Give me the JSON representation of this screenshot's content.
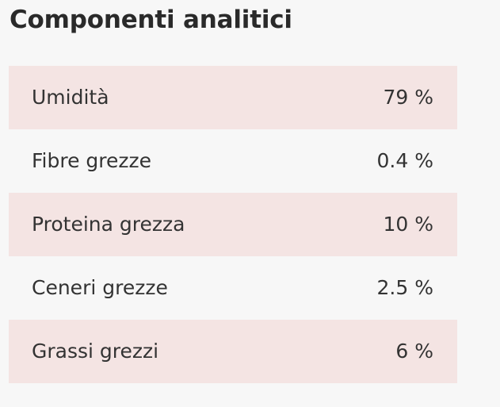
{
  "section": {
    "title": "Componenti analitici"
  },
  "rows": [
    {
      "label": "Umidità",
      "value": "79 %"
    },
    {
      "label": "Fibre grezze",
      "value": "0.4 %"
    },
    {
      "label": "Proteina grezza",
      "value": "10 %"
    },
    {
      "label": "Ceneri grezze",
      "value": "2.5 %"
    },
    {
      "label": "Grassi grezzi",
      "value": "6 %"
    }
  ],
  "colors": {
    "background": "#f7f7f7",
    "shaded_row": "#f4e4e3",
    "text": "#333333"
  }
}
